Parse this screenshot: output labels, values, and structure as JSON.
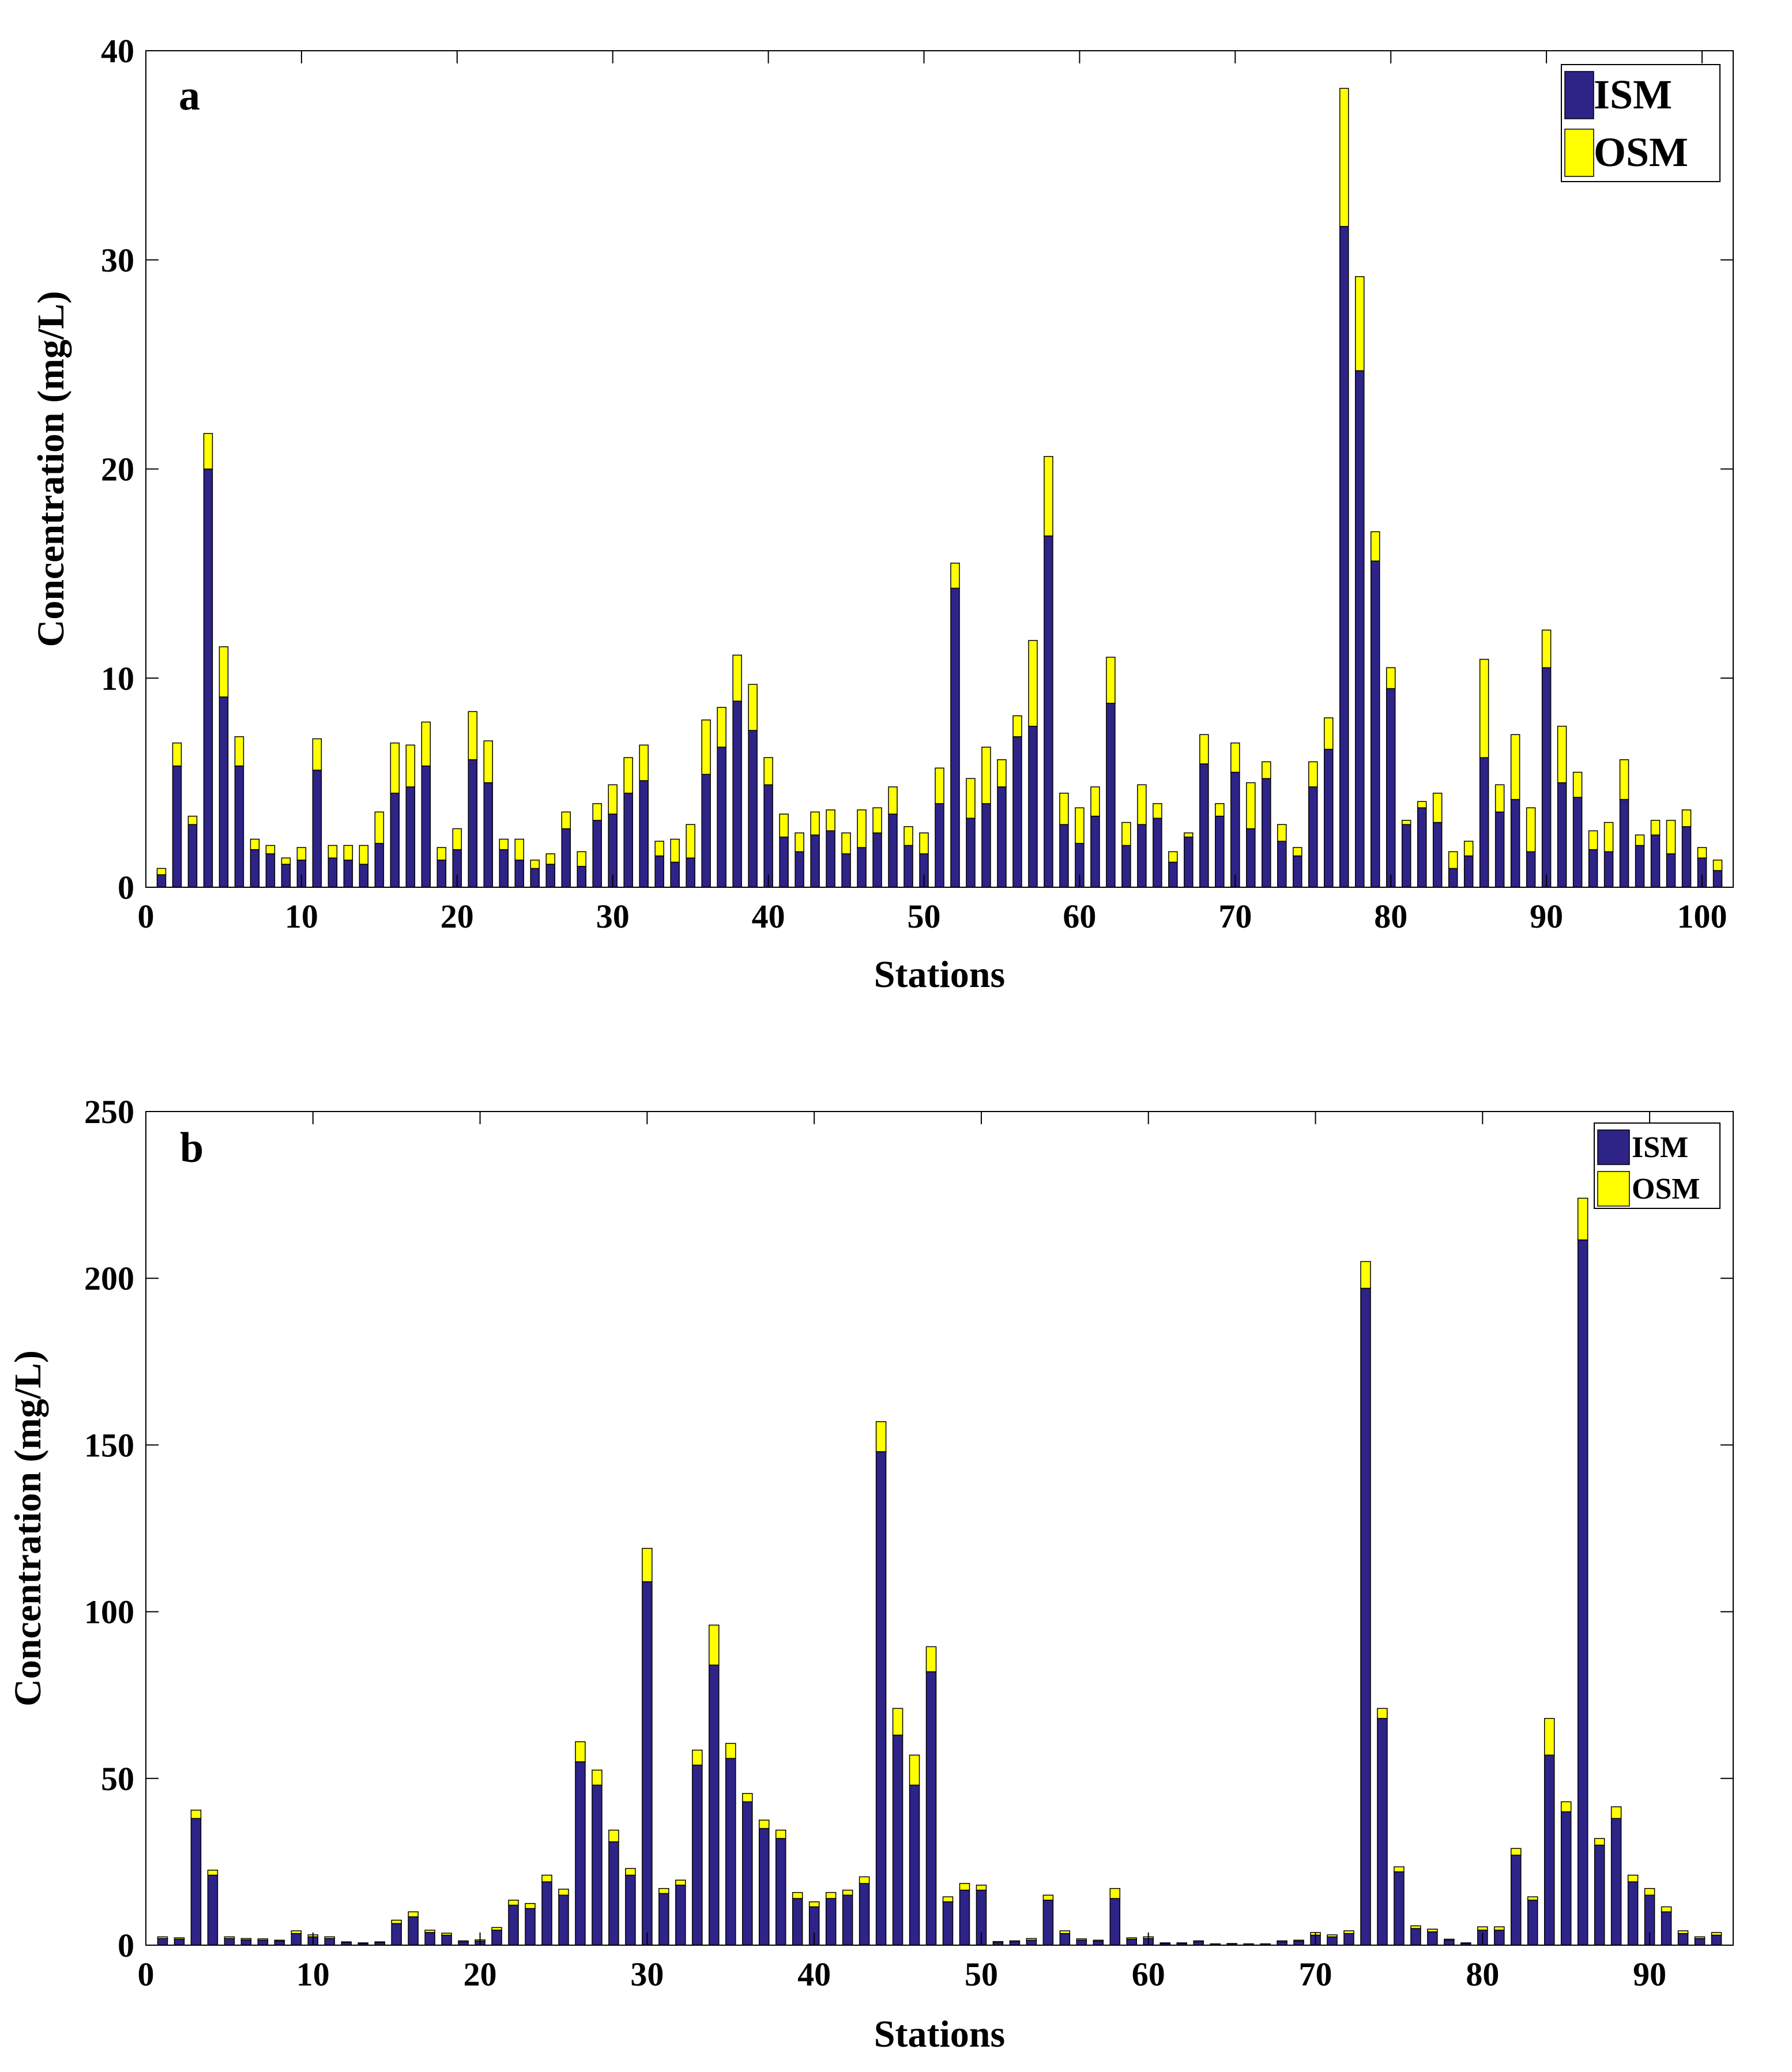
{
  "colors": {
    "ism": "#2e2387",
    "osm": "#ffff00",
    "axis": "#000000",
    "bar_edge": "#000000"
  },
  "chart_data": [
    {
      "type": "bar",
      "stacked": true,
      "panel": "a",
      "xlabel": "Stations",
      "ylabel": "Concentration (mg/L)",
      "xlim": [
        0,
        102
      ],
      "ylim": [
        0,
        40
      ],
      "xticks": [
        "0",
        "10",
        "20",
        "30",
        "40",
        "50",
        "60",
        "70",
        "80",
        "90",
        "100"
      ],
      "yticks": [
        "0",
        "10",
        "20",
        "30",
        "40"
      ],
      "legend_position": "top-right",
      "categories": [
        1,
        2,
        3,
        4,
        5,
        6,
        7,
        8,
        9,
        10,
        11,
        12,
        13,
        14,
        15,
        16,
        17,
        18,
        19,
        20,
        21,
        22,
        23,
        24,
        25,
        26,
        27,
        28,
        29,
        30,
        31,
        32,
        33,
        34,
        35,
        36,
        37,
        38,
        39,
        40,
        41,
        42,
        43,
        44,
        45,
        46,
        47,
        48,
        49,
        50,
        51,
        52,
        53,
        54,
        55,
        56,
        57,
        58,
        59,
        60,
        61,
        62,
        63,
        64,
        65,
        66,
        67,
        68,
        69,
        70,
        71,
        72,
        73,
        74,
        75,
        76,
        77,
        78,
        79,
        80,
        81,
        82,
        83,
        84,
        85,
        86,
        87,
        88,
        89,
        90,
        91,
        92,
        93,
        94,
        95,
        96,
        97,
        98,
        99,
        100,
        101
      ],
      "series": [
        {
          "name": "ISM",
          "values": [
            0.6,
            5.8,
            3.0,
            20.0,
            9.1,
            5.8,
            1.8,
            1.6,
            1.1,
            1.3,
            5.6,
            1.4,
            1.3,
            1.1,
            2.1,
            4.5,
            4.8,
            5.8,
            1.3,
            1.8,
            6.1,
            5.0,
            1.8,
            1.3,
            0.9,
            1.1,
            2.8,
            1.0,
            3.2,
            3.5,
            4.5,
            5.1,
            1.5,
            1.2,
            1.4,
            5.4,
            6.7,
            8.9,
            7.5,
            4.9,
            2.4,
            1.7,
            2.5,
            2.7,
            1.6,
            1.9,
            2.6,
            3.5,
            2.0,
            1.6,
            4.0,
            14.3,
            3.3,
            4.0,
            4.8,
            7.2,
            7.7,
            16.8,
            3.0,
            2.1,
            3.4,
            8.8,
            2.0,
            3.0,
            3.3,
            1.2,
            2.4,
            5.9,
            3.4,
            5.5,
            2.8,
            5.2,
            2.2,
            1.5,
            4.8,
            6.6,
            31.6,
            24.7,
            15.6,
            9.5,
            3.0,
            3.8,
            3.1,
            0.9,
            1.5,
            6.2,
            3.6,
            4.2,
            1.7,
            10.5,
            5.0,
            4.3,
            1.8,
            1.7,
            4.2,
            2.0,
            2.5,
            1.6,
            2.9,
            1.4,
            0.8
          ]
        },
        {
          "name": "OSM",
          "values": [
            0.3,
            1.1,
            0.4,
            1.7,
            2.4,
            1.4,
            0.5,
            0.4,
            0.3,
            0.6,
            1.5,
            0.6,
            0.7,
            0.9,
            1.5,
            2.4,
            2.0,
            2.1,
            0.6,
            1.0,
            2.3,
            2.0,
            0.5,
            1.0,
            0.4,
            0.5,
            0.8,
            0.7,
            0.8,
            1.4,
            1.7,
            1.7,
            0.7,
            1.1,
            1.6,
            2.6,
            1.9,
            2.2,
            2.2,
            1.3,
            1.1,
            0.9,
            1.1,
            1.0,
            1.0,
            1.8,
            1.2,
            1.3,
            0.9,
            1.0,
            1.7,
            1.2,
            1.9,
            2.7,
            1.3,
            1.0,
            4.1,
            3.8,
            1.5,
            1.7,
            1.4,
            2.2,
            1.1,
            1.9,
            0.7,
            0.5,
            0.2,
            1.4,
            0.6,
            1.4,
            2.2,
            0.8,
            0.8,
            0.4,
            1.2,
            1.5,
            6.6,
            4.5,
            1.4,
            1.0,
            0.2,
            0.3,
            1.4,
            0.8,
            0.7,
            4.7,
            1.3,
            3.1,
            2.1,
            1.8,
            2.7,
            1.2,
            0.9,
            1.4,
            1.9,
            0.5,
            0.7,
            1.6,
            0.8,
            0.5,
            0.5
          ]
        }
      ]
    },
    {
      "type": "bar",
      "stacked": true,
      "panel": "b",
      "xlabel": "Stations",
      "ylabel": "Concentration (mg/L)",
      "xlim": [
        0,
        95
      ],
      "ylim": [
        0,
        250
      ],
      "xticks": [
        "0",
        "10",
        "20",
        "30",
        "40",
        "50",
        "60",
        "70",
        "80",
        "90"
      ],
      "yticks": [
        "0",
        "50",
        "100",
        "150",
        "200",
        "250"
      ],
      "legend_position": "top-right",
      "categories": [
        1,
        2,
        3,
        4,
        5,
        6,
        7,
        8,
        9,
        10,
        11,
        12,
        13,
        14,
        15,
        16,
        17,
        18,
        19,
        20,
        21,
        22,
        23,
        24,
        25,
        26,
        27,
        28,
        29,
        30,
        31,
        32,
        33,
        34,
        35,
        36,
        37,
        38,
        39,
        40,
        41,
        42,
        43,
        44,
        45,
        46,
        47,
        48,
        49,
        50,
        51,
        52,
        53,
        54,
        55,
        56,
        57,
        58,
        59,
        60,
        61,
        62,
        63,
        64,
        65,
        66,
        67,
        68,
        69,
        70,
        71,
        72,
        73,
        74,
        75,
        76,
        77,
        78,
        79,
        80,
        81,
        82,
        83,
        84,
        85,
        86,
        87,
        88,
        89,
        90,
        91,
        92,
        93,
        94
      ],
      "series": [
        {
          "name": "ISM",
          "values": [
            2.0,
            1.8,
            38.0,
            21.0,
            2.0,
            1.6,
            1.5,
            1.2,
            3.5,
            2.5,
            2.0,
            0.8,
            0.5,
            0.8,
            6.5,
            8.5,
            3.8,
            3.0,
            1.0,
            1.2,
            4.5,
            12.0,
            11.0,
            19.0,
            15.0,
            55.0,
            48.0,
            31.0,
            21.0,
            109.0,
            15.5,
            18.0,
            54.0,
            84.0,
            56.0,
            43.0,
            35.0,
            32.0,
            14.0,
            11.5,
            14.0,
            15.0,
            18.5,
            148.0,
            63.0,
            48.0,
            82.0,
            13.0,
            16.5,
            16.5,
            0.8,
            1.0,
            1.5,
            13.5,
            3.5,
            1.5,
            1.2,
            14.0,
            1.8,
            2.0,
            0.5,
            0.5,
            1.0,
            0.3,
            0.4,
            0.3,
            0.3,
            1.0,
            1.2,
            3.0,
            2.5,
            3.5,
            197.0,
            68.0,
            22.0,
            5.0,
            4.0,
            1.5,
            0.5,
            4.5,
            4.5,
            27.0,
            13.5,
            57.0,
            40.0,
            211.5,
            30.0,
            38.0,
            19.0,
            15.0,
            10.0,
            3.5,
            2.0,
            3.0
          ]
        },
        {
          "name": "OSM",
          "values": [
            0.5,
            0.4,
            2.5,
            1.5,
            0.5,
            0.4,
            0.4,
            0.3,
            0.8,
            0.6,
            0.5,
            0.2,
            0.2,
            0.2,
            1.0,
            1.5,
            0.7,
            0.6,
            0.3,
            0.4,
            0.8,
            1.5,
            1.5,
            2.0,
            1.8,
            6.0,
            4.5,
            3.5,
            2.0,
            10.0,
            1.5,
            1.5,
            4.5,
            12.0,
            4.5,
            2.5,
            2.5,
            2.5,
            1.8,
            1.5,
            1.8,
            1.5,
            2.0,
            9.0,
            8.0,
            9.0,
            7.5,
            1.5,
            2.0,
            1.5,
            0.3,
            0.3,
            0.5,
            1.5,
            0.8,
            0.4,
            0.3,
            3.0,
            0.4,
            0.5,
            0.2,
            0.2,
            0.3,
            0.1,
            0.1,
            0.1,
            0.1,
            0.3,
            0.3,
            0.8,
            0.6,
            0.8,
            8.0,
            3.0,
            1.5,
            0.8,
            0.8,
            0.3,
            0.2,
            1.0,
            1.0,
            2.0,
            1.0,
            11.0,
            3.0,
            12.5,
            2.0,
            3.5,
            2.0,
            2.0,
            1.5,
            0.8,
            0.5,
            0.8
          ]
        }
      ]
    }
  ]
}
